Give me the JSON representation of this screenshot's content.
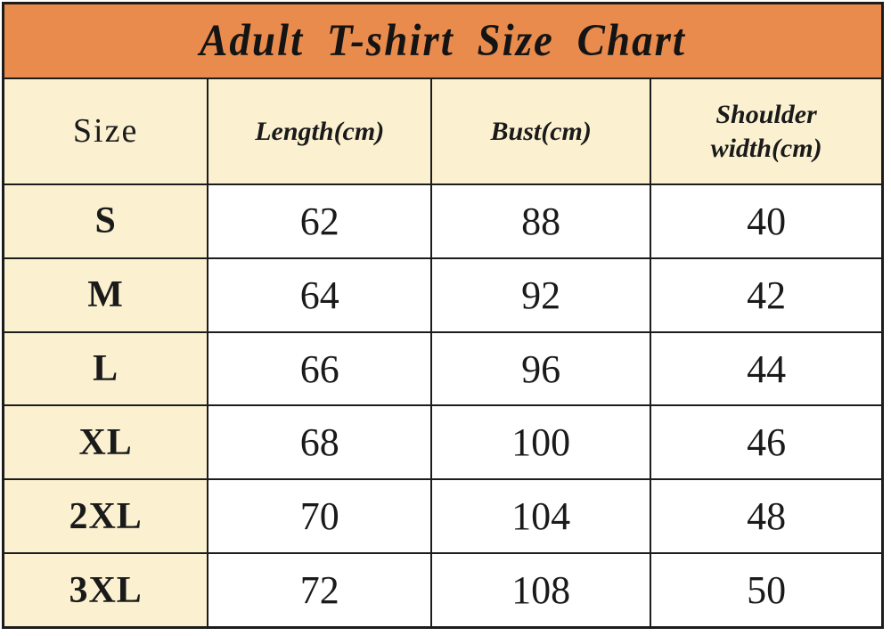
{
  "title": "Adult T-shirt Size Chart",
  "colors": {
    "banner_orange": "#E88B4D",
    "header_cream": "#FBF1D1",
    "cell_white": "#FFFFFF",
    "grid_border": "#1C1C1C",
    "text": "#1A1A1A"
  },
  "table": {
    "columns": [
      "Size",
      "Length(cm)",
      "Bust(cm)",
      "Shoulder width(cm)"
    ],
    "rows": [
      {
        "size": "S",
        "length": "62",
        "bust": "88",
        "shoulder": "40"
      },
      {
        "size": "M",
        "length": "64",
        "bust": "92",
        "shoulder": "42"
      },
      {
        "size": "L",
        "length": "66",
        "bust": "96",
        "shoulder": "44"
      },
      {
        "size": "XL",
        "length": "68",
        "bust": "100",
        "shoulder": "46"
      },
      {
        "size": "2XL",
        "length": "70",
        "bust": "104",
        "shoulder": "48"
      },
      {
        "size": "3XL",
        "length": "72",
        "bust": "108",
        "shoulder": "50"
      }
    ]
  },
  "chart_data": {
    "type": "table",
    "title": "Adult T-shirt Size Chart",
    "columns": [
      "Size",
      "Length(cm)",
      "Bust(cm)",
      "Shoulder width(cm)"
    ],
    "rows": [
      [
        "S",
        62,
        88,
        40
      ],
      [
        "M",
        64,
        92,
        42
      ],
      [
        "L",
        66,
        96,
        44
      ],
      [
        "XL",
        68,
        100,
        46
      ],
      [
        "2XL",
        70,
        104,
        48
      ],
      [
        "3XL",
        72,
        108,
        50
      ]
    ],
    "notes": "Static size-chart lookup table; units in centimeters; no axes, no legend."
  }
}
